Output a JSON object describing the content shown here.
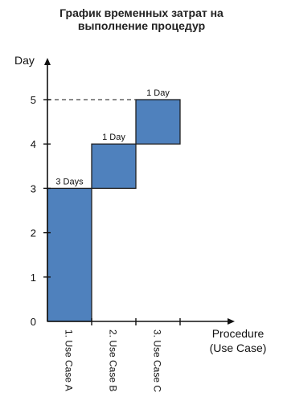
{
  "title_lines": [
    "График временных затрат на",
    "выполнение процедур"
  ],
  "chart_data": {
    "type": "bar",
    "title": "График временных затрат на выполнение процедур",
    "ylabel": "Day",
    "xlabel": "Procedure (Use Case)",
    "xlabel_lines": [
      "Procedure",
      "(Use Case)"
    ],
    "ylim": [
      0,
      5
    ],
    "yticks": [
      0,
      1,
      2,
      3,
      4,
      5
    ],
    "categories": [
      "1. Use Case A",
      "2. Use Case B",
      "3. Use Case C"
    ],
    "bars": [
      {
        "category": "1. Use Case A",
        "start": 0,
        "end": 3,
        "label": "3 Days"
      },
      {
        "category": "2. Use Case B",
        "start": 3,
        "end": 4,
        "label": "1 Day"
      },
      {
        "category": "3. Use Case C",
        "start": 4,
        "end": 5,
        "label": "1 Day"
      }
    ],
    "reference_line": {
      "value": 5,
      "style": "dashed"
    },
    "colors": {
      "bar_fill": "#4f81bd",
      "bar_stroke": "#1f1f1f",
      "axis": "#111111"
    }
  }
}
